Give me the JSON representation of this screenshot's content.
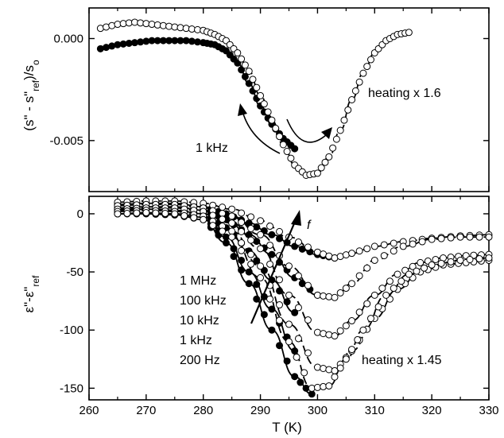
{
  "chart_data": [
    {
      "type": "scatter",
      "panel": "top",
      "title": "",
      "xlabel": "",
      "ylabel": "(s\" - s\"ref)/so",
      "ylabel_parts": {
        "pre": "(s\" - s\"",
        "sub1": "ref",
        "mid": ")/s",
        "sub2": "o"
      },
      "xlim": [
        260,
        330
      ],
      "ylim": [
        -0.0075,
        0.0015
      ],
      "xticks": [
        260,
        270,
        280,
        290,
        300,
        310,
        320,
        330
      ],
      "yticks": [
        0.0,
        -0.005
      ],
      "ytick_labels": [
        "0.000",
        "-0.005"
      ],
      "grid": false,
      "annotations": {
        "heating": "heating x 1.6",
        "freq": "1 kHz"
      },
      "series": [
        {
          "name": "cooling",
          "marker": "filled",
          "x": [
            262,
            265,
            268,
            271,
            274,
            277,
            280,
            282,
            284,
            286,
            288,
            290,
            292,
            294,
            296
          ],
          "y": [
            -0.0005,
            -0.0003,
            -0.0002,
            -0.0001,
            -0.0001,
            -0.0001,
            -0.0002,
            -0.0003,
            -0.0006,
            -0.0012,
            -0.0022,
            -0.0033,
            -0.0042,
            -0.0049,
            -0.0054
          ]
        },
        {
          "name": "heating",
          "marker": "open",
          "x": [
            262,
            265,
            268,
            271,
            274,
            277,
            280,
            282,
            284,
            286,
            288,
            290,
            292,
            294,
            296,
            298,
            300,
            302,
            304,
            306,
            308,
            310,
            312,
            314,
            316
          ],
          "y": [
            0.0005,
            0.0007,
            0.0008,
            0.0007,
            0.0006,
            0.0005,
            0.0004,
            0.0002,
            -0.0001,
            -0.0007,
            -0.0016,
            -0.0028,
            -0.004,
            -0.0052,
            -0.0062,
            -0.0067,
            -0.0066,
            -0.0058,
            -0.0045,
            -0.003,
            -0.0017,
            -0.0007,
            -0.0001,
            0.0002,
            0.0003
          ]
        }
      ]
    },
    {
      "type": "scatter",
      "panel": "bottom",
      "title": "",
      "xlabel": "T (K)",
      "ylabel": "ε\"-ε\"ref",
      "ylabel_parts": {
        "pre": "ε\"-ε\"",
        "sub1": "ref"
      },
      "xlim": [
        260,
        330
      ],
      "ylim": [
        -160,
        15
      ],
      "xticks": [
        260,
        270,
        280,
        290,
        300,
        310,
        320,
        330
      ],
      "yticks": [
        0,
        -50,
        -100,
        -150
      ],
      "grid": false,
      "annotations": {
        "heating": "heating x 1.45",
        "arrow": "f"
      },
      "legend_text": [
        "1 MHz",
        "100 kHz",
        "10 kHz",
        "1 kHz",
        "200 Hz"
      ],
      "series": [
        {
          "name": "1 MHz cooling",
          "marker": "filled",
          "x": [
            265,
            270,
            275,
            280,
            284,
            288,
            292,
            296,
            300,
            303
          ],
          "y": [
            8,
            9,
            9,
            6,
            0,
            -8,
            -18,
            -28,
            -35,
            -38
          ]
        },
        {
          "name": "100 kHz cooling",
          "marker": "filled",
          "x": [
            265,
            270,
            275,
            280,
            284,
            288,
            292,
            296,
            300
          ],
          "y": [
            5,
            6,
            6,
            3,
            -5,
            -18,
            -35,
            -55,
            -70
          ]
        },
        {
          "name": "10 kHz cooling",
          "marker": "filled",
          "x": [
            265,
            270,
            275,
            280,
            284,
            288,
            292,
            296
          ],
          "y": [
            3,
            4,
            3,
            0,
            -12,
            -32,
            -57,
            -85
          ]
        },
        {
          "name": "1 kHz cooling",
          "marker": "filled",
          "x": [
            265,
            270,
            275,
            280,
            284,
            288,
            292,
            296
          ],
          "y": [
            0,
            1,
            0,
            -3,
            -20,
            -50,
            -82,
            -118
          ]
        },
        {
          "name": "200 Hz cooling",
          "marker": "filled",
          "x": [
            265,
            270,
            275,
            280,
            284,
            288,
            292,
            296,
            299
          ],
          "y": [
            0,
            0,
            -1,
            -5,
            -25,
            -60,
            -100,
            -140,
            -155
          ]
        },
        {
          "name": "1 MHz heating",
          "marker": "open",
          "x": [
            265,
            270,
            275,
            280,
            285,
            290,
            295,
            300,
            303,
            306,
            310,
            315,
            320,
            325,
            330
          ],
          "y": [
            10,
            11,
            11,
            9,
            4,
            -6,
            -20,
            -33,
            -38,
            -34,
            -28,
            -24,
            -21,
            -19,
            -18
          ]
        },
        {
          "name": "100 kHz heating",
          "marker": "open",
          "x": [
            265,
            270,
            275,
            280,
            285,
            290,
            295,
            300,
            303,
            306,
            310,
            315,
            320,
            325,
            330
          ],
          "y": [
            7,
            8,
            8,
            5,
            -2,
            -18,
            -45,
            -70,
            -72,
            -60,
            -40,
            -28,
            -22,
            -20,
            -20
          ]
        },
        {
          "name": "10 kHz heating",
          "marker": "open",
          "x": [
            265,
            270,
            275,
            280,
            285,
            290,
            295,
            300,
            303,
            306,
            310,
            314,
            318,
            322,
            326,
            330
          ],
          "y": [
            4,
            5,
            5,
            2,
            -8,
            -30,
            -70,
            -102,
            -105,
            -92,
            -70,
            -52,
            -42,
            -38,
            -36,
            -35
          ]
        },
        {
          "name": "1 kHz heating",
          "marker": "open",
          "x": [
            265,
            270,
            275,
            280,
            285,
            290,
            295,
            300,
            303,
            306,
            310,
            314,
            318,
            322,
            326,
            330
          ],
          "y": [
            2,
            3,
            2,
            -2,
            -15,
            -45,
            -95,
            -132,
            -135,
            -118,
            -90,
            -65,
            -50,
            -44,
            -42,
            -40
          ]
        },
        {
          "name": "200 Hz heating",
          "marker": "open",
          "x": [
            265,
            270,
            275,
            280,
            285,
            290,
            295,
            299,
            302,
            305,
            308,
            312,
            316,
            320,
            325,
            330
          ],
          "y": [
            0,
            1,
            0,
            -5,
            -20,
            -55,
            -110,
            -150,
            -148,
            -125,
            -100,
            -70,
            -52,
            -44,
            -40,
            -38
          ]
        }
      ]
    }
  ]
}
